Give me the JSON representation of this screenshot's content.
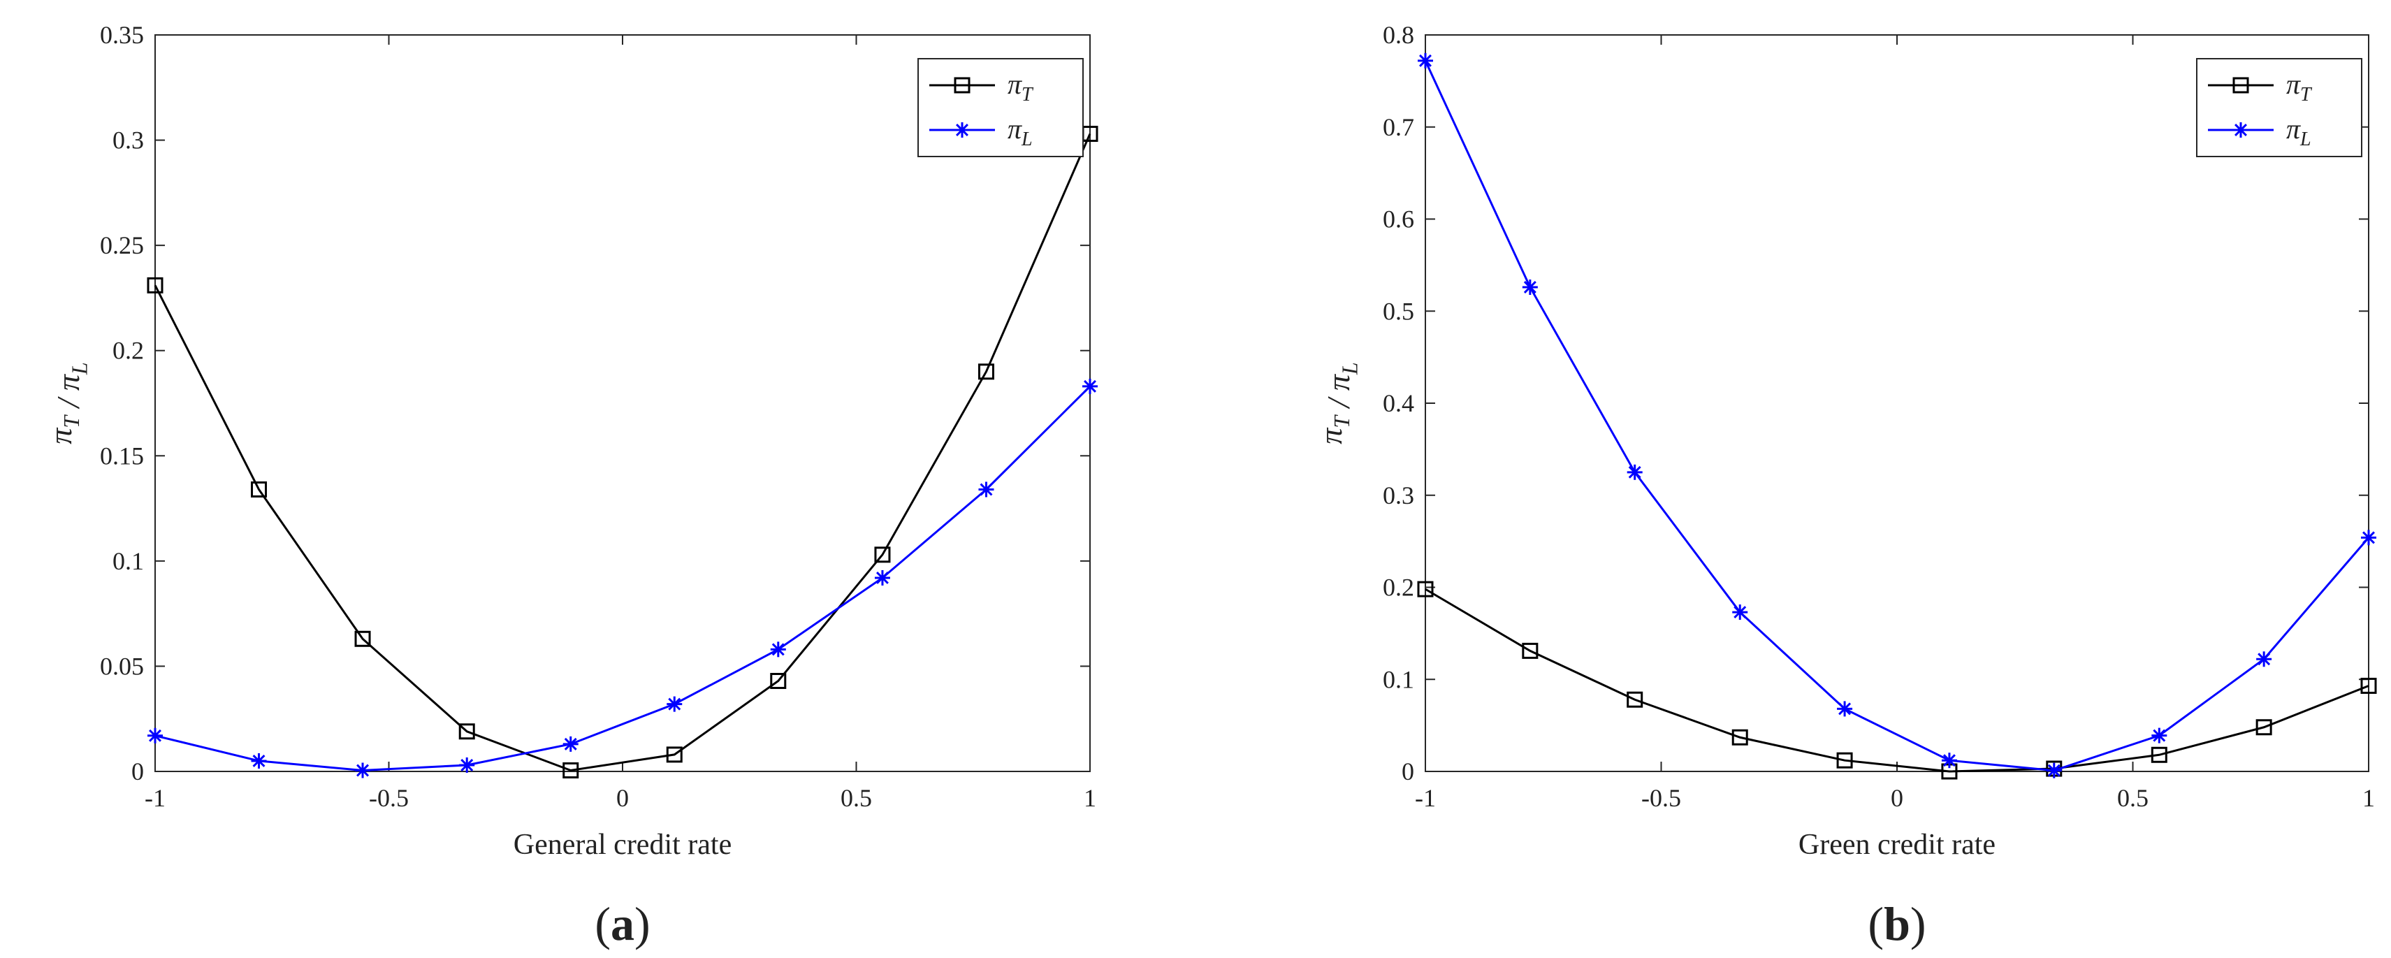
{
  "chart_data": [
    {
      "type": "line",
      "panel_label": "(a)",
      "xlabel": "General credit rate",
      "ylabel": "π_T / π_L",
      "xlim": [
        -1,
        1
      ],
      "ylim": [
        0,
        0.35
      ],
      "xticks": [
        -1,
        -0.5,
        0,
        0.5,
        1
      ],
      "xtick_labels": [
        "-1",
        "-0.5",
        "0",
        "0.5",
        "1"
      ],
      "yticks": [
        0,
        0.05,
        0.1,
        0.15,
        0.2,
        0.25,
        0.3,
        0.35
      ],
      "ytick_labels": [
        "0",
        "0.05",
        "0.1",
        "0.15",
        "0.2",
        "0.25",
        "0.3",
        "0.35"
      ],
      "legend_position": "top-right",
      "series": [
        {
          "name": "π_T",
          "color": "#000000",
          "marker": "square",
          "x": [
            -1,
            -0.778,
            -0.556,
            -0.333,
            -0.111,
            0.111,
            0.333,
            0.556,
            0.778,
            1
          ],
          "y": [
            0.231,
            0.134,
            0.063,
            0.019,
            0.0005,
            0.008,
            0.043,
            0.103,
            0.19,
            0.303
          ]
        },
        {
          "name": "π_L",
          "color": "#0000ff",
          "marker": "asterisk",
          "x": [
            -1,
            -0.778,
            -0.556,
            -0.333,
            -0.111,
            0.111,
            0.333,
            0.556,
            0.778,
            1
          ],
          "y": [
            0.017,
            0.005,
            0.0005,
            0.003,
            0.013,
            0.032,
            0.058,
            0.092,
            0.134,
            0.183
          ]
        }
      ]
    },
    {
      "type": "line",
      "panel_label": "(b)",
      "xlabel": "Green credit rate",
      "ylabel": "π_T / π_L",
      "xlim": [
        -1,
        1
      ],
      "ylim": [
        0,
        0.8
      ],
      "xticks": [
        -1,
        -0.5,
        0,
        0.5,
        1
      ],
      "xtick_labels": [
        "-1",
        "-0.5",
        "0",
        "0.5",
        "1"
      ],
      "yticks": [
        0,
        0.1,
        0.2,
        0.3,
        0.4,
        0.5,
        0.6,
        0.7,
        0.8
      ],
      "ytick_labels": [
        "0",
        "0.1",
        "0.2",
        "0.3",
        "0.4",
        "0.5",
        "0.6",
        "0.7",
        "0.8"
      ],
      "legend_position": "top-right",
      "series": [
        {
          "name": "π_T",
          "color": "#000000",
          "marker": "square",
          "x": [
            -1,
            -0.778,
            -0.556,
            -0.333,
            -0.111,
            0.111,
            0.333,
            0.556,
            0.778,
            1
          ],
          "y": [
            0.198,
            0.131,
            0.078,
            0.037,
            0.012,
            0.0,
            0.003,
            0.018,
            0.048,
            0.093
          ]
        },
        {
          "name": "π_L",
          "color": "#0000ff",
          "marker": "asterisk",
          "x": [
            -1,
            -0.778,
            -0.556,
            -0.333,
            -0.111,
            0.111,
            0.333,
            0.556,
            0.778,
            1
          ],
          "y": [
            0.772,
            0.526,
            0.325,
            0.173,
            0.068,
            0.012,
            0.001,
            0.039,
            0.122,
            0.254
          ]
        }
      ]
    }
  ]
}
